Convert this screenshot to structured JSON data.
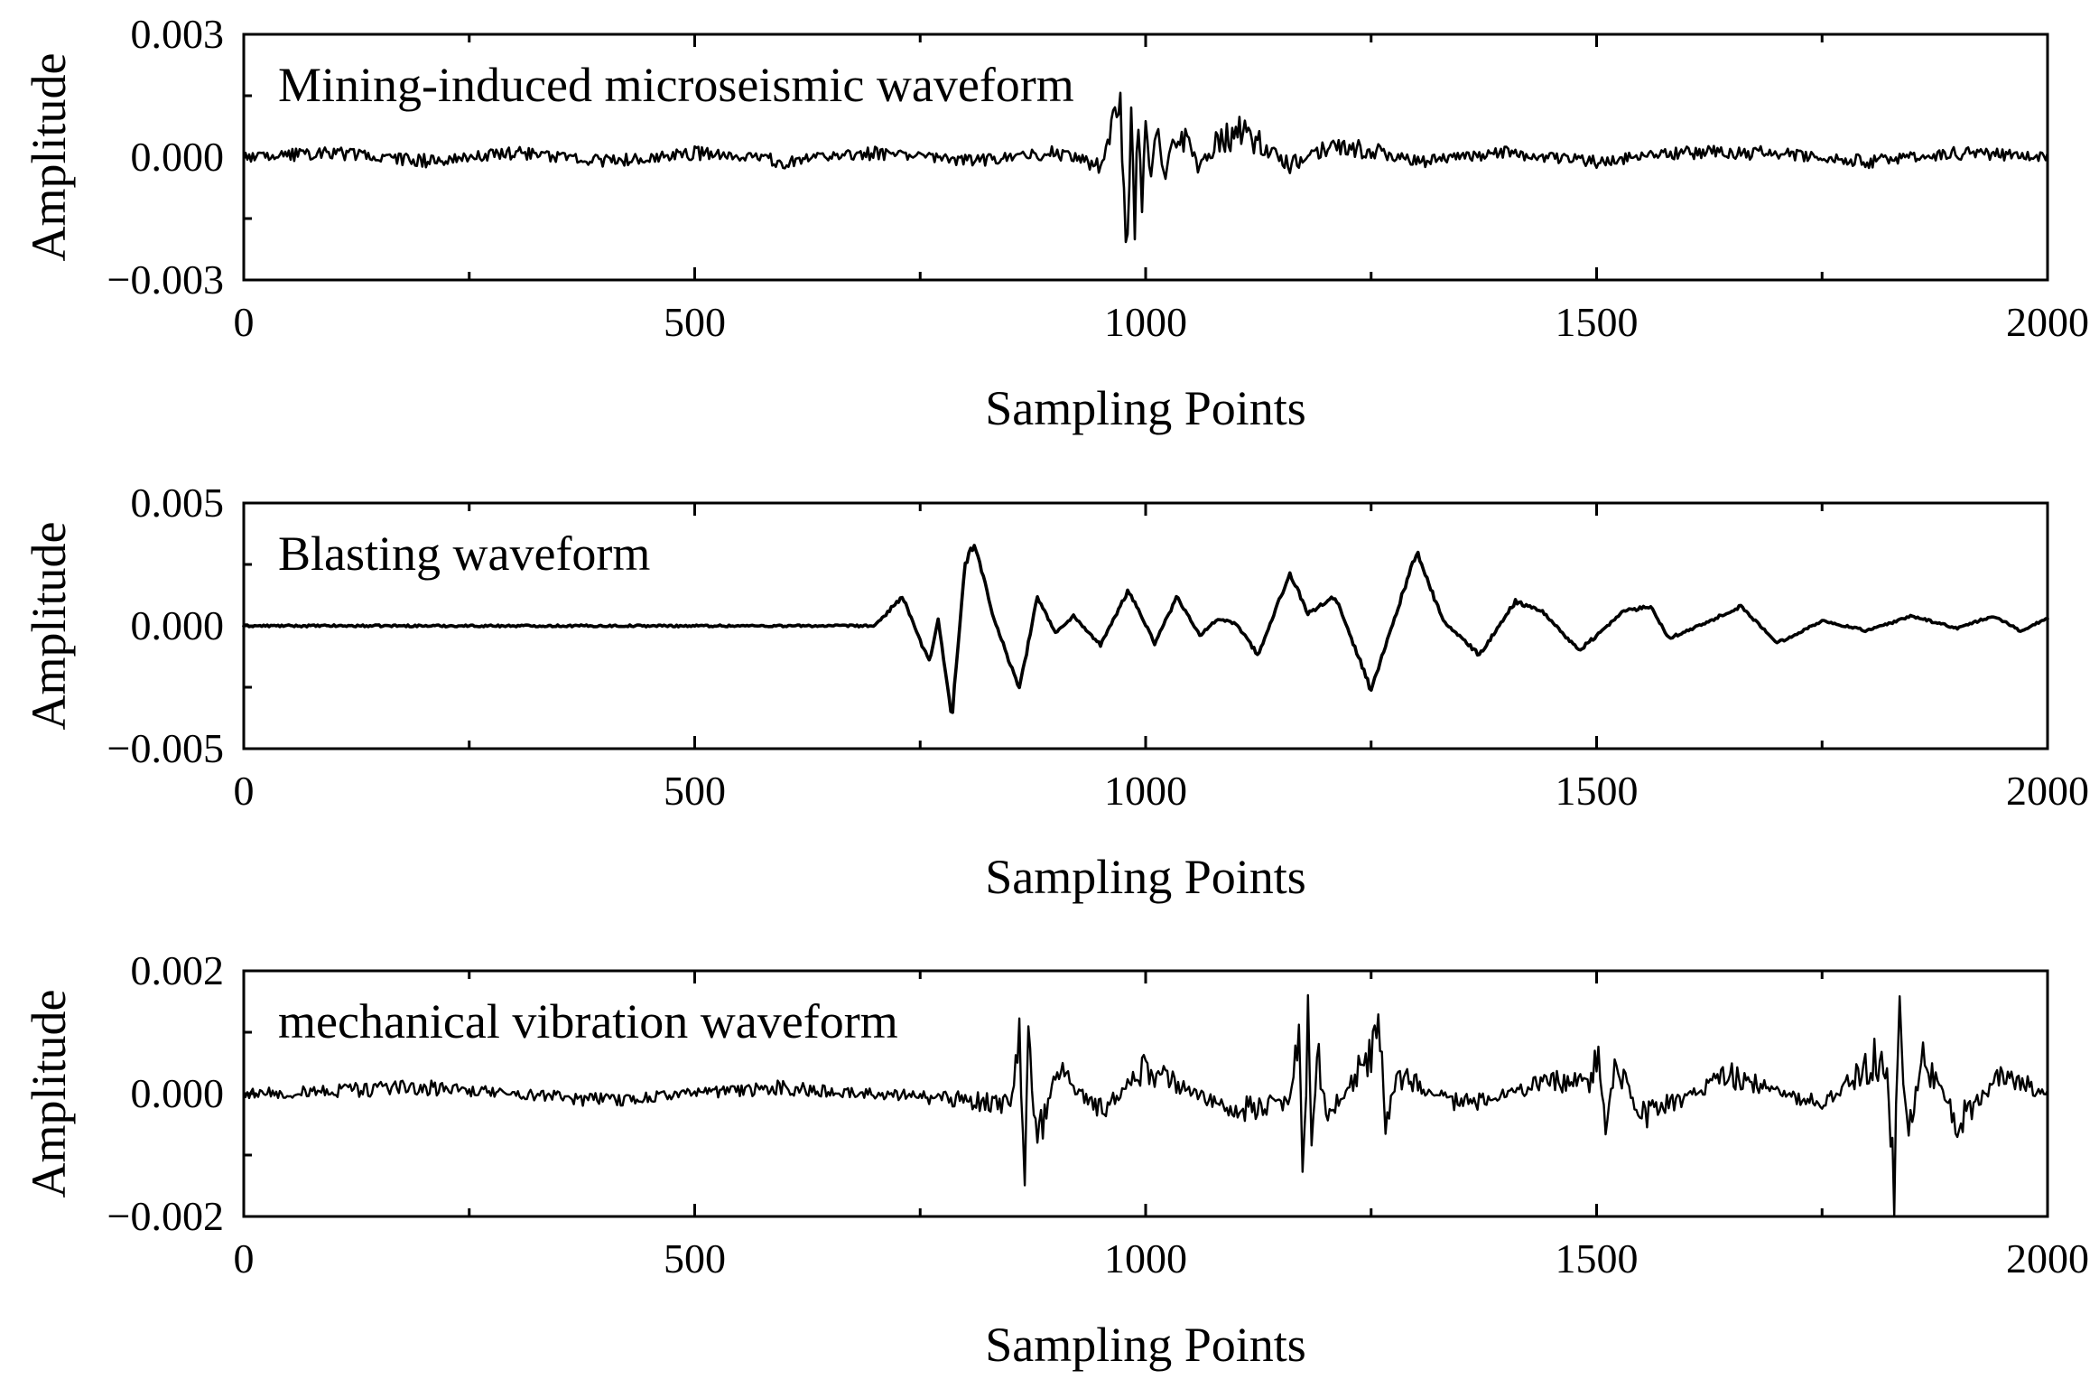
{
  "chart_data": [
    {
      "type": "line",
      "title": "Mining-induced microseismic waveform",
      "xlabel": "Sampling Points",
      "ylabel": "Amplitude",
      "xlim": [
        0,
        2000
      ],
      "ylim": [
        -0.003,
        0.003
      ],
      "x_ticks": [
        {
          "value": 0,
          "label": "0"
        },
        {
          "value": 500,
          "label": "500"
        },
        {
          "value": 1000,
          "label": "1000"
        },
        {
          "value": 1500,
          "label": "1500"
        },
        {
          "value": 2000,
          "label": "2000"
        }
      ],
      "y_ticks": [
        {
          "value": 0.003,
          "label": "0.003"
        },
        {
          "value": 0,
          "label": "0.000"
        },
        {
          "value": -0.003,
          "label": "−0.003"
        }
      ],
      "grid": false,
      "line_color": "#000000",
      "series": [
        {
          "x": [
            0,
            100,
            200,
            300,
            400,
            500,
            600,
            700,
            800,
            900,
            950,
            965,
            972,
            976,
            980,
            984,
            988,
            992,
            996,
            1000,
            1006,
            1012,
            1020,
            1030,
            1045,
            1060,
            1080,
            1100,
            1130,
            1160,
            1200,
            1250,
            1300,
            1400,
            1500,
            1600,
            1700,
            1800,
            1900,
            2000
          ],
          "y": [
            0,
            0.0001,
            -0.0001,
            0.0001,
            -0.0001,
            0.0001,
            -0.0001,
            0.0001,
            -0.0001,
            0.0001,
            -0.0002,
            0.0008,
            0.001,
            -0.0013,
            -0.0022,
            0.0013,
            -0.0015,
            0.0015,
            -0.0014,
            0.0012,
            -0.0009,
            0.0008,
            -0.0006,
            0.0004,
            0.0005,
            -0.0003,
            0.0004,
            0.0006,
            0.0003,
            -0.0002,
            0.0002,
            0.0002,
            -0.0001,
            0.0001,
            -0.0001,
            0.0001,
            0.0001,
            -0.0001,
            0.0001,
            0
          ]
        }
      ]
    },
    {
      "type": "line",
      "title": "Blasting waveform",
      "xlabel": "Sampling Points",
      "ylabel": "Amplitude",
      "xlim": [
        0,
        2000
      ],
      "ylim": [
        -0.005,
        0.005
      ],
      "x_ticks": [
        {
          "value": 0,
          "label": "0"
        },
        {
          "value": 500,
          "label": "500"
        },
        {
          "value": 1000,
          "label": "1000"
        },
        {
          "value": 1500,
          "label": "1500"
        },
        {
          "value": 2000,
          "label": "2000"
        }
      ],
      "y_ticks": [
        {
          "value": 0.005,
          "label": "0.005"
        },
        {
          "value": 0,
          "label": "0.000"
        },
        {
          "value": -0.005,
          "label": "−0.005"
        }
      ],
      "grid": false,
      "line_color": "#000000",
      "series": [
        {
          "x": [
            0,
            700,
            730,
            760,
            770,
            785,
            800,
            810,
            830,
            860,
            880,
            900,
            920,
            950,
            980,
            990,
            1010,
            1035,
            1060,
            1080,
            1100,
            1125,
            1160,
            1180,
            1210,
            1250,
            1275,
            1300,
            1330,
            1370,
            1410,
            1440,
            1480,
            1500,
            1530,
            1560,
            1580,
            1620,
            1660,
            1700,
            1750,
            1800,
            1850,
            1900,
            1940,
            1970,
            2000
          ],
          "y": [
            0,
            0,
            0.0012,
            -0.0015,
            0.0003,
            -0.0038,
            0.0026,
            0.0034,
            0.0005,
            -0.0026,
            0.0012,
            -0.0003,
            0.0004,
            -0.0008,
            0.0014,
            0.0008,
            -0.0007,
            0.0012,
            -0.0004,
            0.0003,
            0.0001,
            -0.0012,
            0.0022,
            0.0005,
            0.0012,
            -0.0026,
            0.0002,
            0.003,
            0.0002,
            -0.0012,
            0.001,
            0.0006,
            -0.001,
            -0.0004,
            0.0006,
            0.0008,
            -0.0005,
            0.0001,
            0.0008,
            -0.0007,
            0.0002,
            -0.0002,
            0.0004,
            -0.0001,
            0.0004,
            -0.0002,
            0.0003
          ]
        }
      ]
    },
    {
      "type": "line",
      "title": "mechanical vibration waveform",
      "xlabel": "Sampling Points",
      "ylabel": "Amplitude",
      "xlim": [
        0,
        2000
      ],
      "ylim": [
        -0.002,
        0.002
      ],
      "x_ticks": [
        {
          "value": 0,
          "label": "0"
        },
        {
          "value": 500,
          "label": "500"
        },
        {
          "value": 1000,
          "label": "1000"
        },
        {
          "value": 1500,
          "label": "1500"
        },
        {
          "value": 2000,
          "label": "2000"
        }
      ],
      "y_ticks": [
        {
          "value": 0.002,
          "label": "0.002"
        },
        {
          "value": 0,
          "label": "0.000"
        },
        {
          "value": -0.002,
          "label": "−0.002"
        }
      ],
      "grid": false,
      "line_color": "#000000",
      "series": [
        {
          "x": [
            0,
            200,
            400,
            600,
            800,
            850,
            860,
            865,
            870,
            880,
            900,
            950,
            1000,
            1100,
            1160,
            1170,
            1175,
            1180,
            1185,
            1190,
            1200,
            1230,
            1260,
            1265,
            1280,
            1350,
            1450,
            1495,
            1500,
            1510,
            1520,
            1550,
            1650,
            1750,
            1820,
            1830,
            1835,
            1845,
            1860,
            1900,
            1950,
            2000
          ],
          "y": [
            0,
            0.0001,
            -0.0001,
            0.0001,
            -0.0001,
            -0.0002,
            0.0009,
            -0.0015,
            0.0008,
            -0.0009,
            0.0004,
            -0.0003,
            0.0004,
            -0.0003,
            -0.0001,
            0.0013,
            -0.0019,
            0.0012,
            -0.001,
            0.0007,
            -0.0004,
            0.0002,
            0.0011,
            -0.0005,
            0.0003,
            -0.0002,
            0.0002,
            0.0002,
            0.0008,
            -0.0008,
            0.0006,
            -0.0004,
            0.0003,
            -0.0002,
            0.0007,
            -0.0015,
            0.0013,
            -0.0009,
            0.0007,
            -0.0005,
            0.0003,
            0
          ]
        }
      ]
    }
  ]
}
